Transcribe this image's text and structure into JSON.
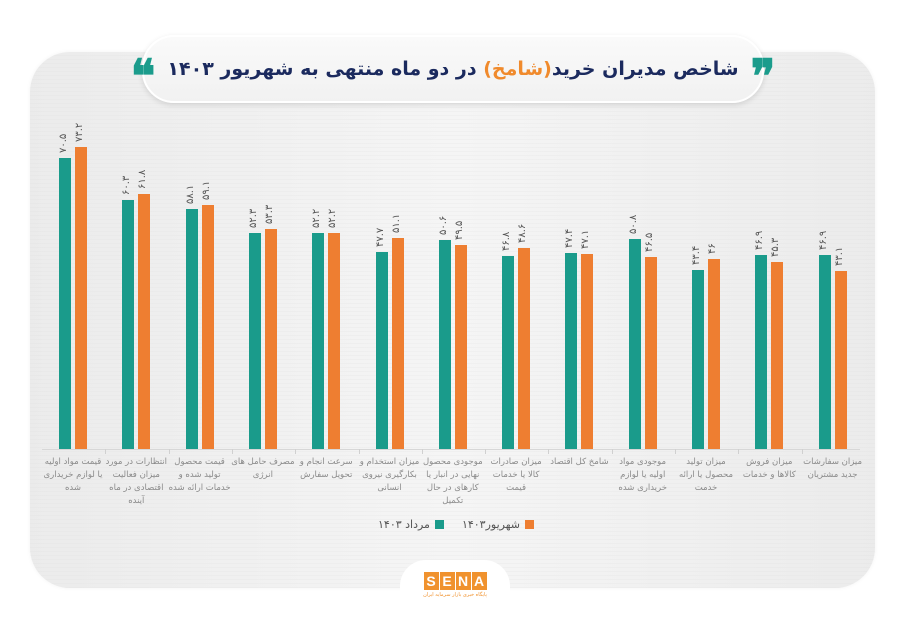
{
  "title": {
    "before": "شاخص مدیران خرید",
    "highlight": "(شامخ)",
    "after": " در دو ماه منتهی به شهریور ۱۴۰۳",
    "open_quote": "❞",
    "close_quote": "❝"
  },
  "legend": {
    "series1": "مرداد ۱۴۰۳",
    "series2": "شهریور۱۴۰۳"
  },
  "logo": {
    "letters": [
      "S",
      "E",
      "N",
      "A"
    ],
    "subtitle": "پایگاه خبری بازار سرمایه ایران"
  },
  "colors": {
    "teal": "#1a9b8b",
    "orange": "#ee7e31",
    "title": "#1b2a5e",
    "highlight": "#f08a2c"
  },
  "chart_data": {
    "type": "bar",
    "title": "شاخص مدیران خرید(شامخ) در دو ماه منتهی به شهریور ۱۴۰۳",
    "xlabel": "",
    "ylabel": "",
    "grid": false,
    "legend_position": "bottom",
    "categories": [
      "قیمت مواد اولیه یا لوازم خریداری شده",
      "انتظارات در مورد میزان فعالیت اقتصادی در ماه آینده",
      "قیمت محصول تولید شده و خدمات ارائه شده",
      "مصرف حامل های انرژی",
      "سرعت انجام و تحویل سفارش",
      "میزان استخدام و بکارگیری نیروی انسانی",
      "موجودی محصول نهایی در انبار یا کارهای در حال تکمیل",
      "میزان صادرات کالا یا خدمات قیمت",
      "شامخ کل اقتصاد",
      "موجودی مواد اولیه یا لوازم خریداری شده",
      "میزان تولید محصول یا ارائه خدمت",
      "میزان فروش کالاها و خدمات",
      "میزان سفارشات جدید مشتریان"
    ],
    "series": [
      {
        "name": "مرداد ۱۴۰۳",
        "color": "#1a9b8b",
        "values": [
          70.5,
          60.3,
          58.1,
          52.3,
          52.2,
          47.7,
          50.6,
          46.8,
          47.4,
          50.8,
          43.4,
          46.9,
          46.9
        ]
      },
      {
        "name": "شهریور۱۴۰۳",
        "color": "#ee7e31",
        "values": [
          73.2,
          61.8,
          59.1,
          53.3,
          52.2,
          51.1,
          49.5,
          48.6,
          47.1,
          46.5,
          46.0,
          45.3,
          43.1
        ]
      }
    ],
    "value_labels": [
      [
        "۷۰.۵",
        "۷۳.۲"
      ],
      [
        "۶۰.۳",
        "۶۱.۸"
      ],
      [
        "۵۸.۱",
        "۵۹.۱"
      ],
      [
        "۵۲.۳",
        "۵۳.۳"
      ],
      [
        "۵۲.۲",
        "۵۲.۲"
      ],
      [
        "۴۷.۷",
        "۵۱.۱"
      ],
      [
        "۵۰.۶",
        "۴۹.۵"
      ],
      [
        "۴۶.۸",
        "۴۸.۶"
      ],
      [
        "۴۷.۴",
        "۴۷.۱"
      ],
      [
        "۵۰.۸",
        "۴۶.۵"
      ],
      [
        "۴۳.۴",
        "۴۶"
      ],
      [
        "۴۶.۹",
        "۴۵.۳"
      ],
      [
        "۴۶.۹",
        "۴۳.۱"
      ]
    ],
    "ylim": [
      0,
      80
    ]
  }
}
